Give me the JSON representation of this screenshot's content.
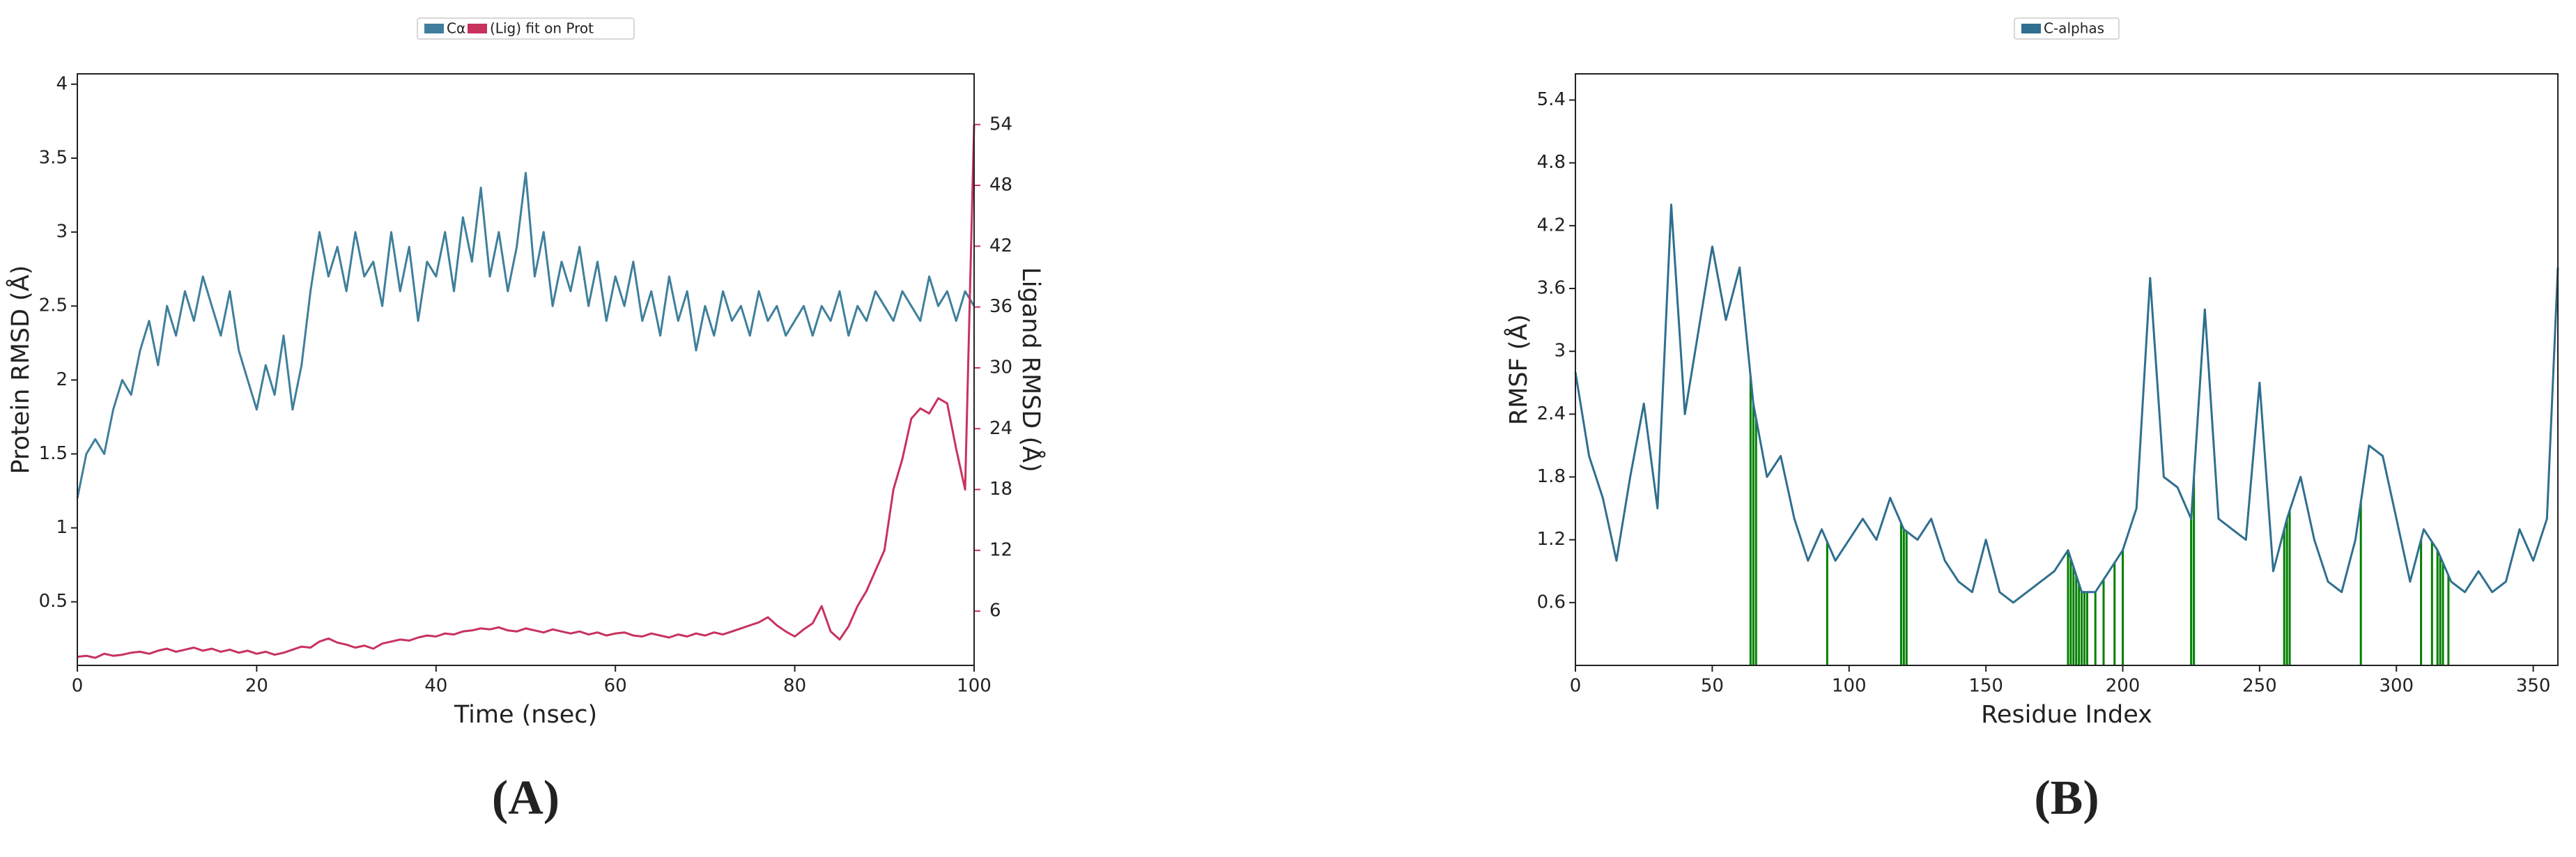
{
  "chart_data": [
    {
      "type": "line",
      "panel_label": "(A)",
      "xlabel": "Time (nsec)",
      "ylabel": "Protein RMSD (Å)",
      "y2label": "Ligand RMSD (Å)",
      "x": [
        0,
        1,
        2,
        3,
        4,
        5,
        6,
        7,
        8,
        9,
        10,
        11,
        12,
        13,
        14,
        15,
        16,
        17,
        18,
        19,
        20,
        21,
        22,
        23,
        24,
        25,
        26,
        27,
        28,
        29,
        30,
        31,
        32,
        33,
        34,
        35,
        36,
        37,
        38,
        39,
        40,
        41,
        42,
        43,
        44,
        45,
        46,
        47,
        48,
        49,
        50,
        51,
        52,
        53,
        54,
        55,
        56,
        57,
        58,
        59,
        60,
        61,
        62,
        63,
        64,
        65,
        66,
        67,
        68,
        69,
        70,
        71,
        72,
        73,
        74,
        75,
        76,
        77,
        78,
        79,
        80,
        81,
        82,
        83,
        84,
        85,
        86,
        87,
        88,
        89,
        90,
        91,
        92,
        93,
        94,
        95,
        96,
        97,
        98,
        99,
        100
      ],
      "xlim": [
        0,
        100
      ],
      "xticks": [
        0,
        20,
        40,
        60,
        80,
        100
      ],
      "ylim": [
        0.07,
        4.07
      ],
      "yticks": [
        0.5,
        1.0,
        1.5,
        2.0,
        2.5,
        3.0,
        3.5,
        4.0
      ],
      "y2lim": [
        0.65,
        59
      ],
      "y2ticks": [
        6,
        12,
        18,
        24,
        30,
        36,
        42,
        48,
        54
      ],
      "series": [
        {
          "name": "Cα",
          "color": "#3f7f9b",
          "values": [
            1.2,
            1.5,
            1.6,
            1.5,
            1.8,
            2.0,
            1.9,
            2.2,
            2.4,
            2.1,
            2.5,
            2.3,
            2.6,
            2.4,
            2.7,
            2.5,
            2.3,
            2.6,
            2.2,
            2.0,
            1.8,
            2.1,
            1.9,
            2.3,
            1.8,
            2.1,
            2.6,
            3.0,
            2.7,
            2.9,
            2.6,
            3.0,
            2.7,
            2.8,
            2.5,
            3.0,
            2.6,
            2.9,
            2.4,
            2.8,
            2.7,
            3.0,
            2.6,
            3.1,
            2.8,
            3.3,
            2.7,
            3.0,
            2.6,
            2.9,
            3.4,
            2.7,
            3.0,
            2.5,
            2.8,
            2.6,
            2.9,
            2.5,
            2.8,
            2.4,
            2.7,
            2.5,
            2.8,
            2.4,
            2.6,
            2.3,
            2.7,
            2.4,
            2.6,
            2.2,
            2.5,
            2.3,
            2.6,
            2.4,
            2.5,
            2.3,
            2.6,
            2.4,
            2.5,
            2.3,
            2.4,
            2.5,
            2.3,
            2.5,
            2.4,
            2.6,
            2.3,
            2.5,
            2.4,
            2.6,
            2.5,
            2.4,
            2.6,
            2.5,
            2.4,
            2.7,
            2.5,
            2.6,
            2.4,
            2.6,
            2.5
          ]
        },
        {
          "name": "(Lig) fit on Prot",
          "color": "#c8325f",
          "axis": "y2",
          "values": [
            1.5,
            1.6,
            1.4,
            1.8,
            1.6,
            1.7,
            1.9,
            2.0,
            1.8,
            2.1,
            2.3,
            2.0,
            2.2,
            2.4,
            2.1,
            2.3,
            2.0,
            2.2,
            1.9,
            2.1,
            1.8,
            2.0,
            1.7,
            1.9,
            2.2,
            2.5,
            2.4,
            3.0,
            3.3,
            2.9,
            2.7,
            2.4,
            2.6,
            2.3,
            2.8,
            3.0,
            3.2,
            3.1,
            3.4,
            3.6,
            3.5,
            3.8,
            3.7,
            4.0,
            4.1,
            4.3,
            4.2,
            4.4,
            4.1,
            4.0,
            4.3,
            4.1,
            3.9,
            4.2,
            4.0,
            3.8,
            4.0,
            3.7,
            3.9,
            3.6,
            3.8,
            3.9,
            3.6,
            3.5,
            3.8,
            3.6,
            3.4,
            3.7,
            3.5,
            3.8,
            3.6,
            3.9,
            3.7,
            4.0,
            4.3,
            4.6,
            4.9,
            5.4,
            4.6,
            4.0,
            3.5,
            4.2,
            4.8,
            6.5,
            4.0,
            3.2,
            4.5,
            6.5,
            8.0,
            10.0,
            12.0,
            18.0,
            21.0,
            25.0,
            26.0,
            25.5,
            27.0,
            26.5,
            22.0,
            18.0,
            54.0
          ]
        }
      ]
    },
    {
      "type": "line",
      "panel_label": "(B)",
      "xlabel": "Residue Index",
      "ylabel": "RMSF (Å)",
      "x": [
        0,
        5,
        10,
        15,
        20,
        25,
        30,
        35,
        40,
        45,
        50,
        55,
        60,
        65,
        70,
        75,
        80,
        85,
        90,
        95,
        100,
        105,
        110,
        115,
        120,
        125,
        130,
        135,
        140,
        145,
        150,
        155,
        160,
        165,
        170,
        175,
        180,
        185,
        190,
        195,
        200,
        205,
        210,
        215,
        220,
        225,
        230,
        235,
        240,
        245,
        250,
        255,
        260,
        265,
        270,
        275,
        280,
        285,
        290,
        295,
        300,
        305,
        310,
        315,
        320,
        325,
        330,
        335,
        340,
        345,
        350,
        355,
        359
      ],
      "xlim": [
        0,
        359
      ],
      "xticks": [
        0,
        50,
        100,
        150,
        200,
        250,
        300,
        350
      ],
      "ylim": [
        0,
        5.65
      ],
      "yticks": [
        0.6,
        1.2,
        1.8,
        2.4,
        3.0,
        3.6,
        4.2,
        4.8,
        5.4
      ],
      "series": [
        {
          "name": "C-alphas",
          "color": "#2f6f8f",
          "values": [
            2.8,
            2.0,
            1.6,
            1.0,
            1.8,
            2.5,
            1.5,
            4.4,
            2.4,
            3.2,
            4.0,
            3.3,
            3.8,
            2.5,
            1.8,
            2.0,
            1.4,
            1.0,
            1.3,
            1.0,
            1.2,
            1.4,
            1.2,
            1.6,
            1.3,
            1.2,
            1.4,
            1.0,
            0.8,
            0.7,
            1.2,
            0.7,
            0.6,
            0.7,
            0.8,
            0.9,
            1.1,
            0.7,
            0.7,
            0.9,
            1.1,
            1.5,
            3.7,
            1.8,
            1.7,
            1.4,
            3.4,
            1.4,
            1.3,
            1.2,
            2.7,
            0.9,
            1.4,
            1.8,
            1.2,
            0.8,
            0.7,
            1.2,
            2.1,
            2.0,
            1.4,
            0.8,
            1.3,
            1.1,
            0.8,
            0.7,
            0.9,
            0.7,
            0.8,
            1.3,
            1.0,
            1.4,
            3.8
          ]
        }
      ],
      "contacts": {
        "color": "#008000",
        "x": [
          64,
          65,
          66,
          92,
          119,
          120,
          121,
          180,
          181,
          182,
          183,
          184,
          185,
          186,
          187,
          190,
          193,
          197,
          200,
          225,
          226,
          259,
          260,
          261,
          287,
          309,
          313,
          315,
          316,
          317,
          319
        ]
      }
    }
  ]
}
